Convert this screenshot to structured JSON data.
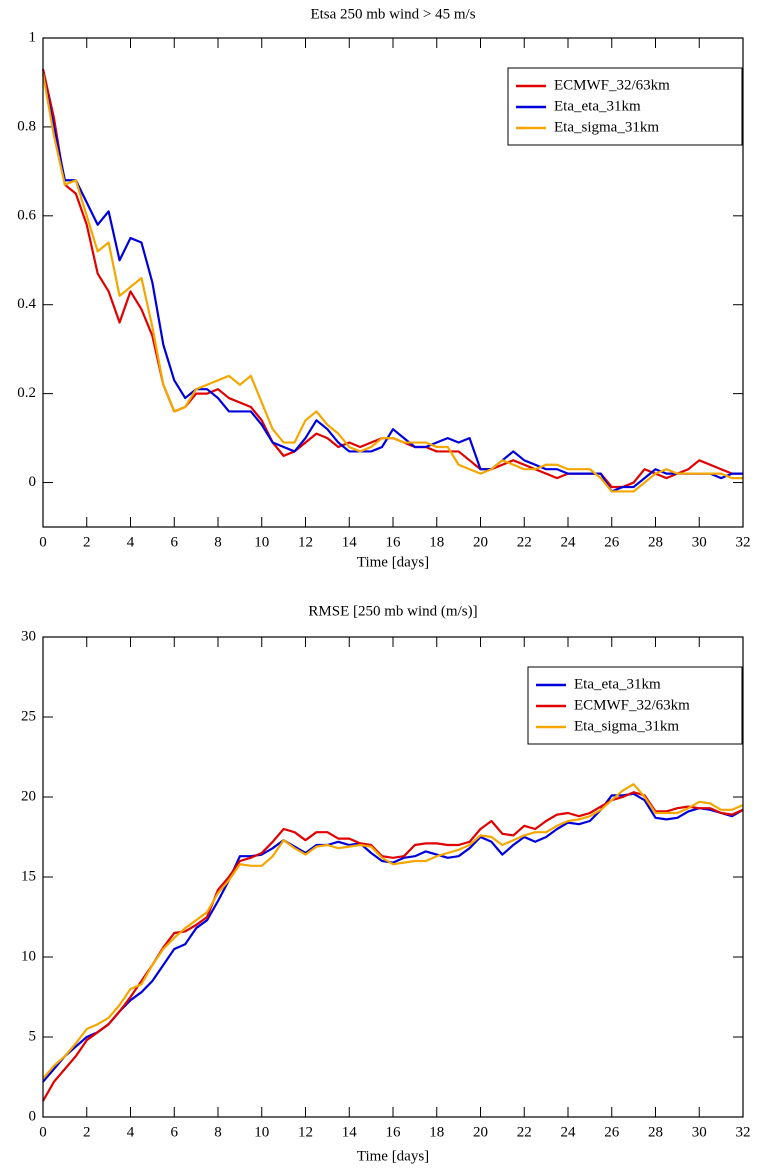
{
  "chart_data": [
    {
      "type": "line",
      "title": "Etsa 250 mb wind > 45 m/s",
      "x_label": "Time [days]",
      "x": [
        0,
        0.5,
        1,
        1.5,
        2,
        2.5,
        3,
        3.5,
        4,
        4.5,
        5,
        5.5,
        6,
        6.5,
        7,
        7.5,
        8,
        8.5,
        9,
        9.5,
        10,
        10.5,
        11,
        11.5,
        12,
        12.5,
        13,
        13.5,
        14,
        14.5,
        15,
        15.5,
        16,
        16.5,
        17,
        17.5,
        18,
        18.5,
        19,
        19.5,
        20,
        20.5,
        21,
        21.5,
        22,
        22.5,
        23,
        23.5,
        24,
        24.5,
        25,
        25.5,
        26,
        26.5,
        27,
        27.5,
        28,
        28.5,
        29,
        29.5,
        30,
        30.5,
        31,
        31.5,
        32
      ],
      "series": [
        {
          "name": "ECMWF_32/63km",
          "color": "#e00000",
          "values": [
            0.93,
            0.82,
            0.67,
            0.65,
            0.58,
            0.47,
            0.43,
            0.36,
            0.43,
            0.39,
            0.33,
            0.22,
            0.16,
            0.17,
            0.2,
            0.2,
            0.21,
            0.19,
            0.18,
            0.17,
            0.14,
            0.09,
            0.06,
            0.07,
            0.09,
            0.11,
            0.1,
            0.08,
            0.09,
            0.08,
            0.09,
            0.1,
            0.1,
            0.09,
            0.08,
            0.08,
            0.07,
            0.07,
            0.07,
            0.05,
            0.03,
            0.03,
            0.04,
            0.05,
            0.04,
            0.03,
            0.02,
            0.01,
            0.02,
            0.02,
            0.02,
            0.02,
            -0.01,
            -0.01,
            0.0,
            0.03,
            0.02,
            0.01,
            0.02,
            0.03,
            0.05,
            0.04,
            0.03,
            0.02,
            0.02
          ]
        },
        {
          "name": "Eta_eta_31km",
          "color": "#0000dd",
          "values": [
            0.92,
            0.8,
            0.68,
            0.68,
            0.63,
            0.58,
            0.61,
            0.5,
            0.55,
            0.54,
            0.45,
            0.31,
            0.23,
            0.19,
            0.21,
            0.21,
            0.19,
            0.16,
            0.16,
            0.16,
            0.13,
            0.09,
            0.08,
            0.07,
            0.1,
            0.14,
            0.12,
            0.09,
            0.07,
            0.07,
            0.07,
            0.08,
            0.12,
            0.1,
            0.08,
            0.08,
            0.09,
            0.1,
            0.09,
            0.1,
            0.03,
            0.03,
            0.05,
            0.07,
            0.05,
            0.04,
            0.03,
            0.03,
            0.02,
            0.02,
            0.02,
            0.02,
            -0.02,
            -0.01,
            -0.01,
            0.01,
            0.03,
            0.02,
            0.02,
            0.02,
            0.02,
            0.02,
            0.01,
            0.02,
            0.02
          ]
        },
        {
          "name": "Eta_sigma_31km",
          "color": "#f5a700",
          "values": [
            0.92,
            0.78,
            0.67,
            0.68,
            0.6,
            0.52,
            0.54,
            0.42,
            0.44,
            0.46,
            0.35,
            0.22,
            0.16,
            0.17,
            0.21,
            0.22,
            0.23,
            0.24,
            0.22,
            0.24,
            0.18,
            0.12,
            0.09,
            0.09,
            0.14,
            0.16,
            0.13,
            0.11,
            0.08,
            0.07,
            0.08,
            0.1,
            0.1,
            0.09,
            0.09,
            0.09,
            0.08,
            0.08,
            0.04,
            0.03,
            0.02,
            0.03,
            0.05,
            0.04,
            0.03,
            0.03,
            0.04,
            0.04,
            0.03,
            0.03,
            0.03,
            0.01,
            -0.02,
            -0.02,
            -0.02,
            0.0,
            0.02,
            0.03,
            0.02,
            0.02,
            0.02,
            0.02,
            0.02,
            0.01,
            0.01
          ]
        }
      ],
      "xlim": [
        0,
        32
      ],
      "xticks": [
        0,
        2,
        4,
        6,
        8,
        10,
        12,
        14,
        16,
        18,
        20,
        22,
        24,
        26,
        28,
        30,
        32
      ],
      "ylim": [
        -0.1,
        1
      ],
      "yticks": [
        0,
        0.2,
        0.4,
        0.6,
        0.8,
        1
      ],
      "grid": false,
      "legend": "upper right"
    },
    {
      "type": "line",
      "title": "RMSE [250 mb wind (m/s)]",
      "x_label": "Time [days]",
      "x": [
        0,
        0.5,
        1,
        1.5,
        2,
        2.5,
        3,
        3.5,
        4,
        4.5,
        5,
        5.5,
        6,
        6.5,
        7,
        7.5,
        8,
        8.5,
        9,
        9.5,
        10,
        10.5,
        11,
        11.5,
        12,
        12.5,
        13,
        13.5,
        14,
        14.5,
        15,
        15.5,
        16,
        16.5,
        17,
        17.5,
        18,
        18.5,
        19,
        19.5,
        20,
        20.5,
        21,
        21.5,
        22,
        22.5,
        23,
        23.5,
        24,
        24.5,
        25,
        25.5,
        26,
        26.5,
        27,
        27.5,
        28,
        28.5,
        29,
        29.5,
        30,
        30.5,
        31,
        31.5,
        32
      ],
      "series": [
        {
          "name": "Eta_eta_31km",
          "color": "#0000dd",
          "values": [
            2.2,
            3.0,
            3.8,
            4.4,
            5.0,
            5.3,
            5.8,
            6.6,
            7.3,
            7.8,
            8.5,
            9.5,
            10.5,
            10.8,
            11.8,
            12.3,
            13.5,
            14.8,
            16.3,
            16.3,
            16.4,
            16.8,
            17.3,
            16.9,
            16.5,
            17.0,
            17.0,
            17.2,
            17.0,
            17.1,
            16.5,
            16.0,
            15.9,
            16.2,
            16.3,
            16.6,
            16.4,
            16.2,
            16.3,
            16.8,
            17.5,
            17.2,
            16.4,
            17.0,
            17.5,
            17.2,
            17.5,
            18.0,
            18.4,
            18.3,
            18.5,
            19.2,
            20.1,
            20.1,
            20.2,
            19.8,
            18.7,
            18.6,
            18.7,
            19.1,
            19.3,
            19.2,
            19.0,
            18.8,
            19.2
          ]
        },
        {
          "name": "ECMWF_32/63km",
          "color": "#e00000",
          "values": [
            1.0,
            2.2,
            3.0,
            3.8,
            4.8,
            5.3,
            5.8,
            6.6,
            7.5,
            8.5,
            9.5,
            10.6,
            11.5,
            11.6,
            12.0,
            12.5,
            14.2,
            15.0,
            16.0,
            16.2,
            16.5,
            17.2,
            18.0,
            17.8,
            17.3,
            17.8,
            17.8,
            17.4,
            17.4,
            17.1,
            17.0,
            16.3,
            16.2,
            16.3,
            17.0,
            17.1,
            17.1,
            17.0,
            17.0,
            17.2,
            18.0,
            18.5,
            17.7,
            17.6,
            18.2,
            18.0,
            18.5,
            18.9,
            19.0,
            18.8,
            19.0,
            19.4,
            19.8,
            20.0,
            20.3,
            20.1,
            19.1,
            19.1,
            19.3,
            19.4,
            19.3,
            19.3,
            19.0,
            18.9,
            19.2
          ]
        },
        {
          "name": "Eta_sigma_31km",
          "color": "#f5a700",
          "values": [
            2.4,
            3.2,
            3.8,
            4.6,
            5.5,
            5.8,
            6.2,
            7.0,
            8.0,
            8.3,
            9.5,
            10.5,
            11.2,
            11.8,
            12.3,
            12.8,
            14.0,
            14.8,
            15.8,
            15.7,
            15.7,
            16.3,
            17.3,
            16.8,
            16.4,
            16.9,
            17.0,
            16.8,
            16.9,
            17.0,
            16.9,
            16.2,
            15.8,
            15.9,
            16.0,
            16.0,
            16.3,
            16.5,
            16.7,
            17.0,
            17.6,
            17.5,
            17.0,
            17.3,
            17.6,
            17.8,
            17.8,
            18.2,
            18.5,
            18.6,
            18.8,
            19.2,
            19.8,
            20.4,
            20.8,
            20.0,
            19.0,
            19.0,
            19.0,
            19.3,
            19.7,
            19.6,
            19.2,
            19.2,
            19.5
          ]
        }
      ],
      "xlim": [
        0,
        32
      ],
      "xticks": [
        0,
        2,
        4,
        6,
        8,
        10,
        12,
        14,
        16,
        18,
        20,
        22,
        24,
        26,
        28,
        30,
        32
      ],
      "ylim": [
        0,
        30
      ],
      "yticks": [
        0,
        5,
        10,
        15,
        20,
        25,
        30
      ],
      "grid": false,
      "legend": "upper right"
    }
  ]
}
